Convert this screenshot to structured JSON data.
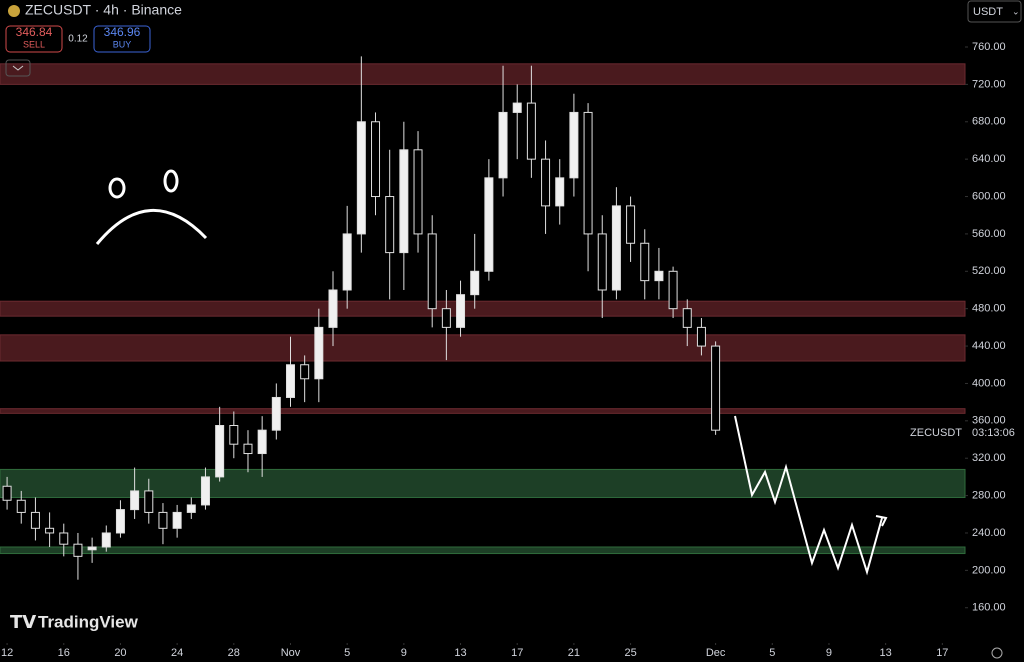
{
  "header": {
    "symbol": "ZECUSDT · 4h · Binance",
    "sell_price": "346.84",
    "sell_label": "SELL",
    "spread": "0.12",
    "buy_price": "346.96",
    "buy_label": "BUY",
    "currency": "USDT",
    "brand": "TradingView",
    "last_symbol": "ZECUSDT",
    "countdown": "03:13:06"
  },
  "chart_data": {
    "type": "candlestick",
    "x": [
      0,
      1,
      2,
      3,
      4,
      5,
      6,
      7,
      8,
      9,
      10,
      11,
      12,
      13,
      14,
      15,
      16,
      17,
      18,
      19,
      20,
      21,
      22,
      23,
      24,
      25,
      26,
      27,
      28,
      29,
      30,
      31,
      32,
      33,
      34,
      35,
      36,
      37,
      38,
      39,
      40,
      41,
      42,
      43,
      44,
      45,
      46,
      47,
      48,
      49,
      50
    ],
    "open": [
      290,
      275,
      262,
      245,
      240,
      228,
      222,
      225,
      240,
      265,
      285,
      262,
      245,
      262,
      270,
      300,
      355,
      335,
      325,
      350,
      385,
      420,
      405,
      460,
      500,
      560,
      680,
      600,
      540,
      650,
      560,
      480,
      460,
      495,
      520,
      620,
      690,
      700,
      640,
      590,
      620,
      690,
      560,
      500,
      590,
      550,
      510,
      520,
      480,
      460,
      440
    ],
    "high": [
      300,
      285,
      278,
      262,
      250,
      240,
      235,
      248,
      275,
      310,
      298,
      272,
      270,
      278,
      310,
      375,
      370,
      350,
      365,
      400,
      450,
      430,
      480,
      520,
      590,
      750,
      690,
      650,
      680,
      670,
      580,
      500,
      510,
      560,
      640,
      740,
      720,
      740,
      660,
      640,
      710,
      700,
      580,
      610,
      600,
      565,
      545,
      525,
      490,
      470,
      445
    ],
    "low": [
      265,
      250,
      232,
      225,
      215,
      190,
      208,
      220,
      235,
      255,
      250,
      228,
      235,
      255,
      265,
      295,
      320,
      305,
      300,
      340,
      375,
      380,
      380,
      440,
      480,
      540,
      580,
      490,
      500,
      540,
      460,
      425,
      450,
      480,
      510,
      600,
      640,
      620,
      560,
      570,
      600,
      520,
      470,
      490,
      530,
      490,
      490,
      470,
      440,
      430,
      345
    ],
    "close": [
      275,
      262,
      245,
      240,
      228,
      215,
      225,
      240,
      265,
      285,
      262,
      245,
      262,
      270,
      300,
      355,
      335,
      325,
      350,
      385,
      420,
      405,
      460,
      500,
      560,
      680,
      600,
      540,
      650,
      560,
      480,
      460,
      495,
      520,
      620,
      690,
      700,
      640,
      590,
      620,
      690,
      560,
      500,
      590,
      550,
      510,
      520,
      480,
      460,
      440,
      350
    ],
    "xlim": [
      -0.5,
      67.6
    ],
    "ylim": [
      110.5,
      810.3
    ],
    "xticks": [
      {
        "value": 0,
        "label": "12"
      },
      {
        "value": 4,
        "label": "16"
      },
      {
        "value": 8,
        "label": "20"
      },
      {
        "value": 12,
        "label": "24"
      },
      {
        "value": 16,
        "label": "28"
      },
      {
        "value": 20,
        "label": "Nov"
      },
      {
        "value": 24,
        "label": "5"
      },
      {
        "value": 28,
        "label": "9"
      },
      {
        "value": 32,
        "label": "13"
      },
      {
        "value": 36,
        "label": "17"
      },
      {
        "value": 40,
        "label": "21"
      },
      {
        "value": 44,
        "label": "25"
      },
      {
        "value": 50,
        "label": "Dec"
      },
      {
        "value": 54,
        "label": "5"
      },
      {
        "value": 58,
        "label": "9"
      },
      {
        "value": 62,
        "label": "13"
      },
      {
        "value": 66,
        "label": "17"
      }
    ],
    "yticks": [
      {
        "value": 160,
        "label": "160.00"
      },
      {
        "value": 200,
        "label": "200.00"
      },
      {
        "value": 240,
        "label": "240.00"
      },
      {
        "value": 280,
        "label": "280.00"
      },
      {
        "value": 320,
        "label": "320.00"
      },
      {
        "value": 360,
        "label": "360.00"
      },
      {
        "value": 400,
        "label": "400.00"
      },
      {
        "value": 440,
        "label": "440.00"
      },
      {
        "value": 480,
        "label": "480.00"
      },
      {
        "value": 520,
        "label": "520.00"
      },
      {
        "value": 560,
        "label": "560.00"
      },
      {
        "value": 600,
        "label": "600.00"
      },
      {
        "value": 640,
        "label": "640.00"
      },
      {
        "value": 680,
        "label": "680.00"
      },
      {
        "value": 720,
        "label": "720.00"
      },
      {
        "value": 760,
        "label": "760.00"
      }
    ],
    "zones": [
      {
        "low": 720,
        "high": 742,
        "color": "#4a1a1e"
      },
      {
        "low": 472,
        "high": 488,
        "color": "#4a1a1e"
      },
      {
        "low": 424,
        "high": 452,
        "color": "#4a1a1e"
      },
      {
        "low": 368,
        "high": 373,
        "color": "#4a1a1e"
      },
      {
        "low": 278,
        "high": 308,
        "color": "#1d3f26"
      },
      {
        "low": 218,
        "high": 225,
        "color": "#1d3f26"
      }
    ]
  }
}
